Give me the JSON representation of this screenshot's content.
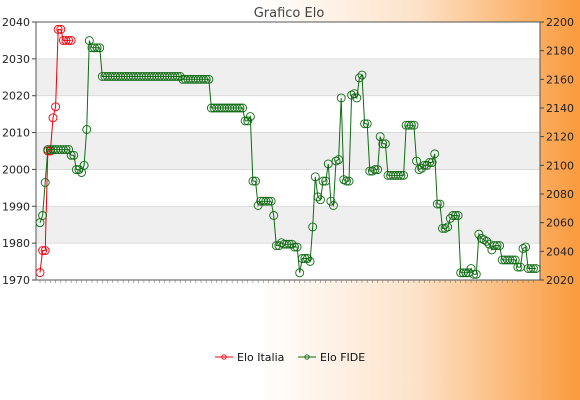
{
  "chart_data": {
    "type": "line",
    "title": "Grafico Elo",
    "y_left": {
      "min": 1970,
      "max": 2040,
      "ticks": [
        1970,
        1980,
        1990,
        2000,
        2010,
        2020,
        2030,
        2040
      ]
    },
    "y_right": {
      "min": 2020,
      "max": 2200,
      "ticks": [
        2020,
        2040,
        2060,
        2080,
        2100,
        2120,
        2140,
        2160,
        2180,
        2200
      ]
    },
    "grid": true,
    "legend_position": "bottom",
    "colors": {
      "elo_italia": "#e8000b",
      "elo_fide": "#0f6b12"
    },
    "series": [
      {
        "name": "Elo Italia",
        "axis": "left",
        "values": [
          1972,
          1978,
          1978,
          2005,
          2005,
          2014,
          2017,
          2038,
          2038,
          2035,
          2035,
          2035,
          2035
        ]
      },
      {
        "name": "Elo FIDE",
        "axis": "right",
        "values": [
          2060,
          2065,
          2088,
          2111,
          2111,
          2111,
          2111,
          2111,
          2111,
          2111,
          2111,
          2111,
          2107,
          2107,
          2097,
          2097,
          2095,
          2100,
          2125,
          2187,
          2182,
          2182,
          2182,
          2182,
          2162,
          2162,
          2162,
          2162,
          2162,
          2162,
          2162,
          2162,
          2162,
          2162,
          2162,
          2162,
          2162,
          2162,
          2162,
          2162,
          2162,
          2162,
          2162,
          2162,
          2162,
          2162,
          2162,
          2162,
          2162,
          2162,
          2162,
          2162,
          2162,
          2162,
          2162,
          2160,
          2160,
          2160,
          2160,
          2160,
          2160,
          2160,
          2160,
          2160,
          2160,
          2160,
          2140,
          2140,
          2140,
          2140,
          2140,
          2140,
          2140,
          2140,
          2140,
          2140,
          2140,
          2140,
          2140,
          2131,
          2131,
          2134,
          2089,
          2089,
          2072,
          2075,
          2075,
          2075,
          2075,
          2075,
          2065,
          2044,
          2044,
          2046,
          2045,
          2045,
          2045,
          2045,
          2043,
          2043,
          2025,
          2035,
          2035,
          2035,
          2033,
          2057,
          2092,
          2078,
          2076,
          2089,
          2089,
          2101,
          2075,
          2072,
          2103,
          2104,
          2147,
          2090,
          2089,
          2089,
          2149,
          2150,
          2147,
          2161,
          2163,
          2129,
          2129,
          2096,
          2096,
          2097,
          2097,
          2120,
          2115,
          2115,
          2093,
          2093,
          2093,
          2093,
          2093,
          2093,
          2093,
          2128,
          2128,
          2128,
          2128,
          2103,
          2097,
          2098,
          2100,
          2100,
          2102,
          2102,
          2108,
          2073,
          2073,
          2056,
          2056,
          2057,
          2063,
          2065,
          2065,
          2065,
          2025,
          2025,
          2025,
          2025,
          2028,
          2024,
          2024,
          2052,
          2049,
          2048,
          2047,
          2045,
          2041,
          2044,
          2044,
          2044,
          2034,
          2034,
          2034,
          2034,
          2034,
          2034,
          2029,
          2029,
          2042,
          2043,
          2028,
          2028,
          2028,
          2028
        ]
      }
    ]
  }
}
